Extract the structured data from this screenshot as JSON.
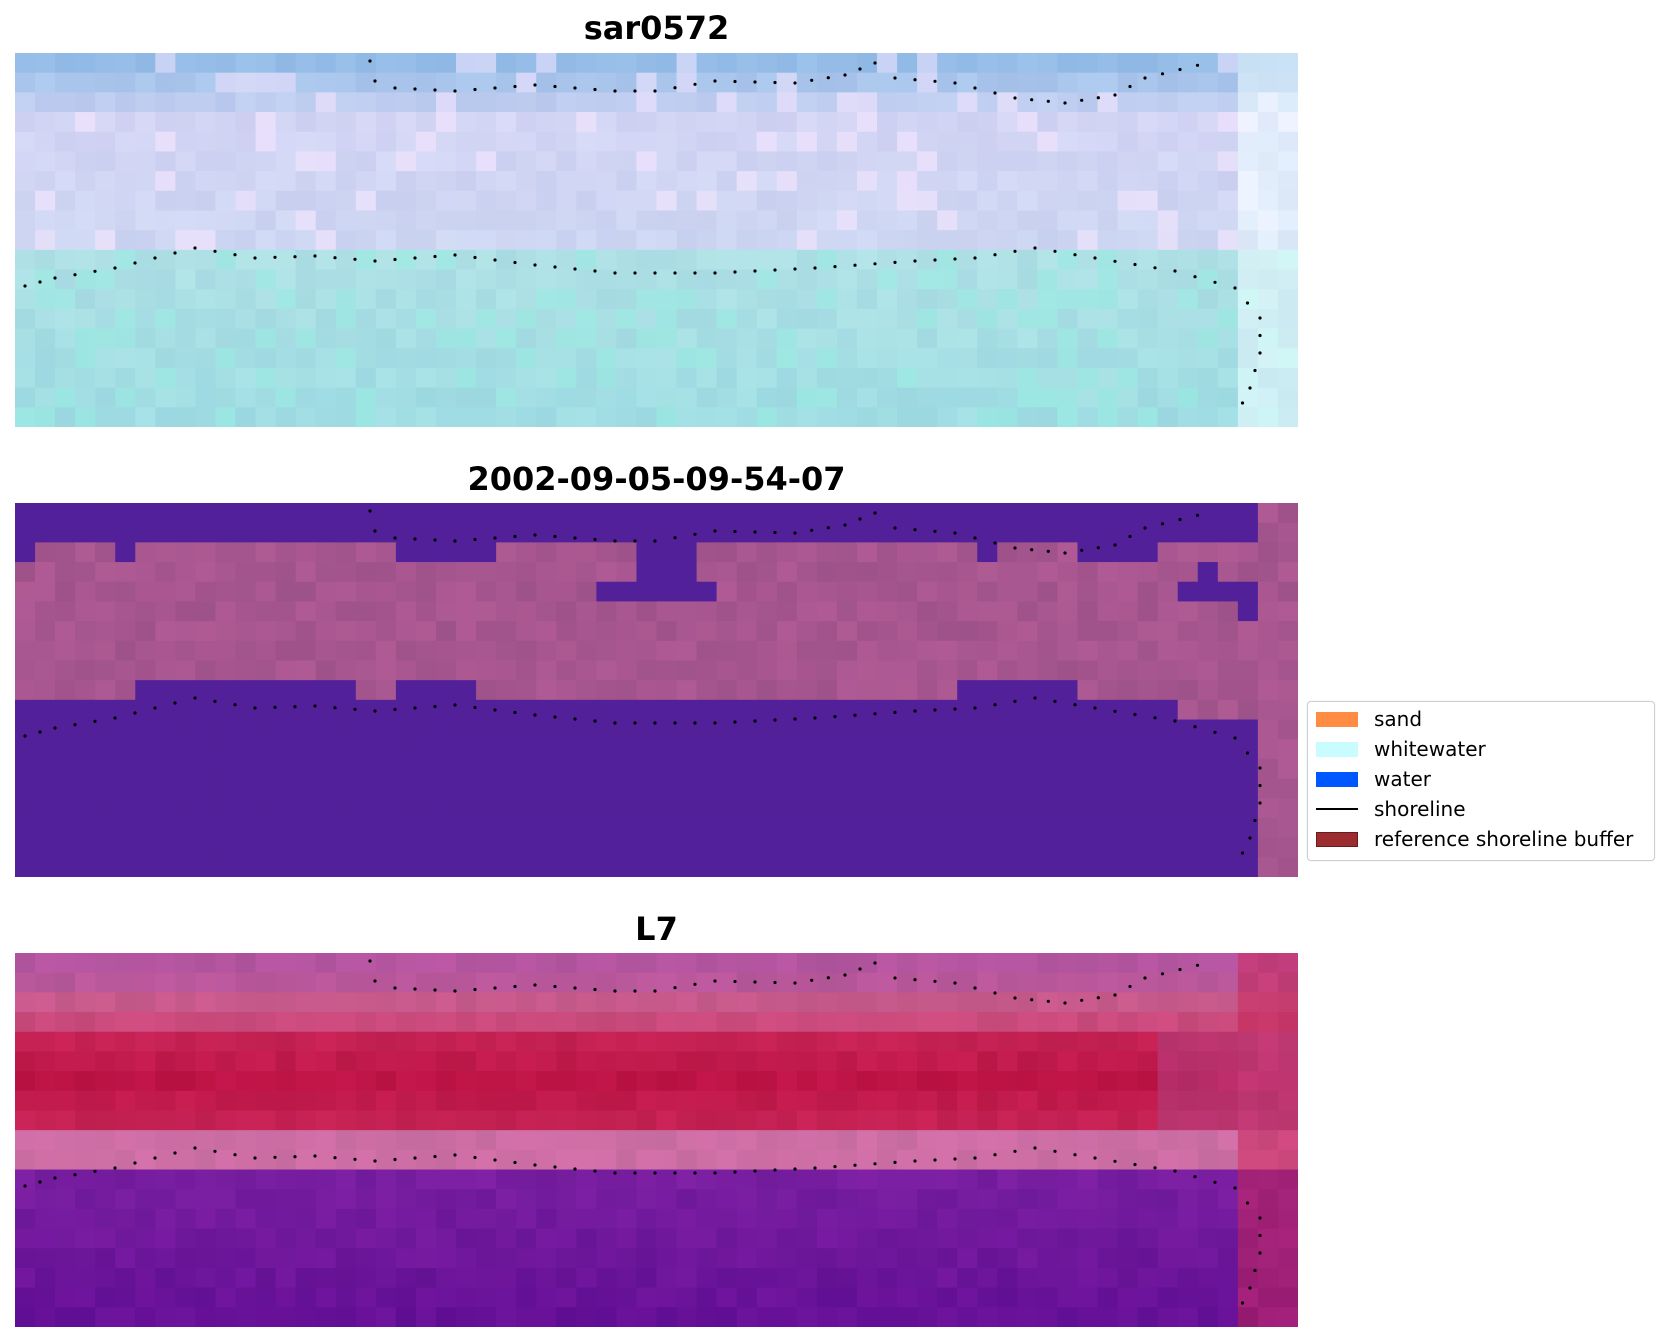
{
  "panels": [
    {
      "title": "sar0572"
    },
    {
      "title": "2002-09-05-09-54-07"
    },
    {
      "title": "L7"
    }
  ],
  "legend": {
    "items": [
      {
        "label": "sand",
        "color": "#ff8c42",
        "kind": "patch"
      },
      {
        "label": "whitewater",
        "color": "#c8fcff",
        "kind": "patch"
      },
      {
        "label": "water",
        "color": "#0057ff",
        "kind": "patch"
      },
      {
        "label": "shoreline",
        "color": "#000000",
        "kind": "line"
      },
      {
        "label": "reference shoreline buffer",
        "color": "#9b2d30",
        "kind": "patch"
      }
    ]
  },
  "colors": {
    "classified_water": "#52219a",
    "classified_land": "#a7568f"
  }
}
